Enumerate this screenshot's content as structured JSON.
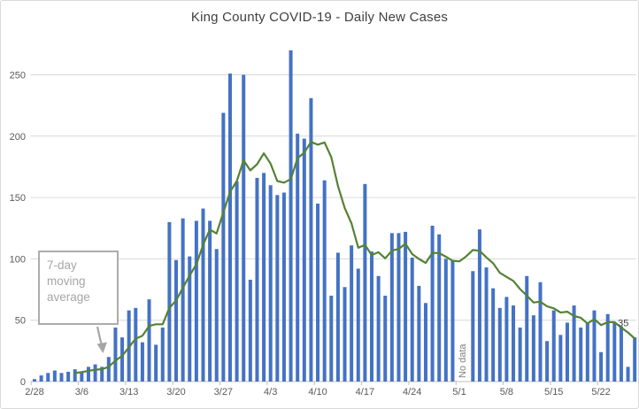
{
  "title": "King County COVID-19 - Daily New Cases",
  "annotation": {
    "text": "7-day moving average"
  },
  "labels": {
    "no_data": "No data",
    "line_end_value": "35"
  },
  "colors": {
    "bar": "#4472C4",
    "line": "#548235",
    "grid": "#D9D9D9",
    "axis_line": "#BFBFBF",
    "axis_text": "#595959",
    "title_text": "#404040",
    "annotation_gray": "#A6A6A6",
    "no_data_text": "#808080",
    "end_label_text": "#404040"
  },
  "chart_data": {
    "type": "bar",
    "title": "King County COVID-19 - Daily New Cases",
    "xlabel": "",
    "ylabel": "",
    "ylim": [
      0,
      280
    ],
    "yticks": [
      0,
      50,
      100,
      150,
      200,
      250
    ],
    "grid": true,
    "legend_position": "none",
    "x": [
      "2/28",
      "2/29",
      "3/1",
      "3/2",
      "3/3",
      "3/4",
      "3/5",
      "3/6",
      "3/7",
      "3/8",
      "3/9",
      "3/10",
      "3/11",
      "3/12",
      "3/13",
      "3/14",
      "3/15",
      "3/16",
      "3/17",
      "3/18",
      "3/19",
      "3/20",
      "3/21",
      "3/22",
      "3/23",
      "3/24",
      "3/25",
      "3/26",
      "3/27",
      "3/28",
      "3/29",
      "3/30",
      "3/31",
      "4/1",
      "4/2",
      "4/3",
      "4/4",
      "4/5",
      "4/6",
      "4/7",
      "4/8",
      "4/9",
      "4/10",
      "4/11",
      "4/12",
      "4/13",
      "4/14",
      "4/15",
      "4/16",
      "4/17",
      "4/18",
      "4/19",
      "4/20",
      "4/21",
      "4/22",
      "4/23",
      "4/24",
      "4/25",
      "4/26",
      "4/27",
      "4/28",
      "4/29",
      "4/30",
      "5/1",
      "5/2",
      "5/3",
      "5/4",
      "5/5",
      "5/6",
      "5/7",
      "5/8",
      "5/9",
      "5/10",
      "5/11",
      "5/12",
      "5/13",
      "5/14",
      "5/15",
      "5/16",
      "5/17",
      "5/18",
      "5/19",
      "5/20",
      "5/21",
      "5/22",
      "5/23",
      "5/24",
      "5/25",
      "5/26",
      "5/27"
    ],
    "x_tick_labels": [
      "2/28",
      "3/6",
      "3/13",
      "3/20",
      "3/27",
      "4/3",
      "4/10",
      "4/17",
      "4/24",
      "5/1",
      "5/8",
      "5/15",
      "5/22"
    ],
    "x_tick_indices": [
      0,
      7,
      14,
      21,
      28,
      35,
      42,
      49,
      56,
      63,
      70,
      77,
      84
    ],
    "no_data_indices": [
      63,
      64
    ],
    "series": [
      {
        "name": "Daily new cases",
        "type": "bar",
        "values": [
          2,
          5,
          7,
          9,
          7,
          8,
          10,
          8,
          12,
          14,
          12,
          20,
          44,
          36,
          58,
          60,
          32,
          67,
          30,
          44,
          130,
          99,
          133,
          102,
          131,
          141,
          131,
          108,
          219,
          251,
          163,
          250,
          83,
          166,
          170,
          160,
          152,
          154,
          270,
          202,
          198,
          231,
          145,
          164,
          70,
          105,
          77,
          111,
          92,
          161,
          106,
          86,
          70,
          121,
          121,
          122,
          101,
          78,
          64,
          127,
          120,
          100,
          99,
          null,
          null,
          90,
          124,
          93,
          76,
          60,
          69,
          62,
          44,
          86,
          54,
          81,
          33,
          58,
          38,
          48,
          62,
          44,
          48,
          58,
          24,
          55,
          48,
          45,
          12,
          36
        ]
      },
      {
        "name": "7-day moving average",
        "type": "line",
        "values": [
          null,
          null,
          null,
          null,
          null,
          null,
          6.9,
          7.7,
          8.7,
          9.7,
          10.1,
          12,
          17.1,
          20.9,
          28,
          34.9,
          37.4,
          45.3,
          46.7,
          46.7,
          60.1,
          66,
          76.4,
          86.4,
          95.6,
          111.4,
          123.9,
          120.7,
          137.9,
          154.7,
          163.4,
          180.4,
          172.1,
          177.1,
          186,
          177.6,
          163.4,
          162.1,
          165,
          182,
          186.6,
          195.3,
          193.1,
          194.9,
          182.9,
          159.3,
          141.4,
          129,
          109.1,
          111.4,
          103.1,
          105.4,
          100.4,
          106.7,
          108.1,
          112.4,
          103.9,
          99.9,
          96.7,
          104.9,
          104.7,
          101.7,
          98.4,
          98,
          102,
          107.2,
          106.6,
          101.2,
          96.4,
          88.6,
          85.3,
          82,
          75.4,
          70,
          64.4,
          65.1,
          61.3,
          59.7,
          56.3,
          56.9,
          53.4,
          52,
          47.3,
          50.9,
          46,
          48.4,
          48.4,
          44,
          40,
          35
        ]
      }
    ]
  }
}
